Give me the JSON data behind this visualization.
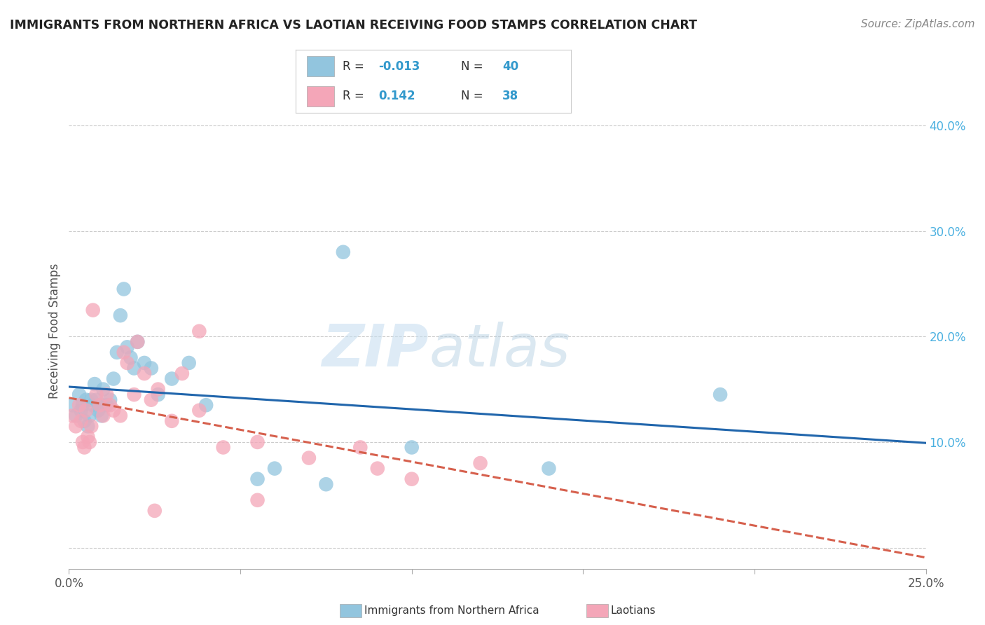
{
  "title": "IMMIGRANTS FROM NORTHERN AFRICA VS LAOTIAN RECEIVING FOOD STAMPS CORRELATION CHART",
  "source": "Source: ZipAtlas.com",
  "ylabel": "Receiving Food Stamps",
  "xlim": [
    0.0,
    25.0
  ],
  "ylim": [
    -2.0,
    43.0
  ],
  "yticks": [
    0.0,
    10.0,
    20.0,
    30.0,
    40.0
  ],
  "ytick_labels": [
    "",
    "10.0%",
    "20.0%",
    "30.0%",
    "40.0%"
  ],
  "blue_color": "#92c5de",
  "pink_color": "#f4a6b8",
  "blue_line_color": "#2166ac",
  "pink_line_color": "#d6604d",
  "watermark_zip": "ZIP",
  "watermark_atlas": "atlas",
  "blue_scatter_x": [
    0.1,
    0.2,
    0.3,
    0.35,
    0.4,
    0.45,
    0.5,
    0.55,
    0.6,
    0.65,
    0.7,
    0.75,
    0.8,
    0.85,
    0.9,
    0.95,
    1.0,
    1.1,
    1.2,
    1.3,
    1.4,
    1.5,
    1.6,
    1.7,
    1.8,
    1.9,
    2.0,
    2.2,
    2.4,
    2.6,
    3.0,
    3.5,
    4.0,
    5.5,
    6.0,
    7.5,
    8.0,
    10.0,
    14.0,
    19.0
  ],
  "blue_scatter_y": [
    13.5,
    12.5,
    14.5,
    13.0,
    13.5,
    12.0,
    14.0,
    11.5,
    12.5,
    14.0,
    13.5,
    15.5,
    14.0,
    13.0,
    13.5,
    12.5,
    15.0,
    13.5,
    14.0,
    16.0,
    18.5,
    22.0,
    24.5,
    19.0,
    18.0,
    17.0,
    19.5,
    17.5,
    17.0,
    14.5,
    16.0,
    17.5,
    13.5,
    6.5,
    7.5,
    6.0,
    28.0,
    9.5,
    7.5,
    14.5
  ],
  "pink_scatter_x": [
    0.1,
    0.2,
    0.3,
    0.35,
    0.4,
    0.45,
    0.5,
    0.55,
    0.6,
    0.65,
    0.7,
    0.8,
    0.9,
    1.0,
    1.1,
    1.2,
    1.3,
    1.5,
    1.6,
    1.7,
    1.9,
    2.0,
    2.2,
    2.4,
    2.6,
    3.0,
    3.3,
    3.8,
    3.8,
    4.5,
    5.5,
    7.0,
    8.5,
    9.0,
    10.0,
    12.0,
    5.5,
    2.5
  ],
  "pink_scatter_y": [
    12.5,
    11.5,
    13.5,
    12.0,
    10.0,
    9.5,
    13.0,
    10.5,
    10.0,
    11.5,
    22.5,
    14.5,
    13.5,
    12.5,
    14.5,
    13.5,
    13.0,
    12.5,
    18.5,
    17.5,
    14.5,
    19.5,
    16.5,
    14.0,
    15.0,
    12.0,
    16.5,
    20.5,
    13.0,
    9.5,
    10.0,
    8.5,
    9.5,
    7.5,
    6.5,
    8.0,
    4.5,
    3.5
  ]
}
